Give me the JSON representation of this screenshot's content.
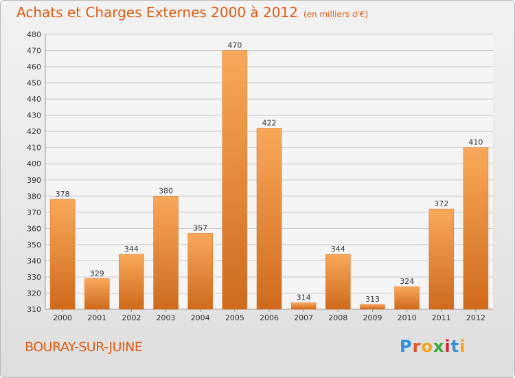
{
  "header": {
    "title": "Achats et Charges Externes 2000 à 2012",
    "subtitle": "(en milliers d'€)"
  },
  "footer": {
    "city": "BOURAY-SUR-JUINE",
    "logo": [
      "P",
      "r",
      "o",
      "x",
      "i",
      "t",
      "i"
    ],
    "logo_colors": [
      "#2f8fd8",
      "#e8542a",
      "#f2a21b",
      "#3aa935",
      "#d8262f",
      "#2f8fd8",
      "#f2a21b"
    ]
  },
  "colors": {
    "bar_light": "#f8a85a",
    "bar_dark": "#cf6a1c",
    "text": "#e05a10",
    "grid": "#c9c9c9"
  },
  "chart_data": {
    "type": "bar",
    "title": "Achats et Charges Externes 2000 à 2012",
    "subtitle": "(en milliers d'€)",
    "categories": [
      "2000",
      "2001",
      "2002",
      "2003",
      "2004",
      "2005",
      "2006",
      "2007",
      "2008",
      "2009",
      "2010",
      "2011",
      "2012"
    ],
    "values": [
      378,
      329,
      344,
      380,
      357,
      470,
      422,
      314,
      344,
      313,
      324,
      372,
      410
    ],
    "ylim": [
      310,
      480
    ],
    "yticks": [
      310,
      320,
      330,
      340,
      350,
      360,
      370,
      380,
      390,
      400,
      410,
      420,
      430,
      440,
      450,
      460,
      470,
      480
    ],
    "grid": true,
    "xlabel": "",
    "ylabel": ""
  }
}
